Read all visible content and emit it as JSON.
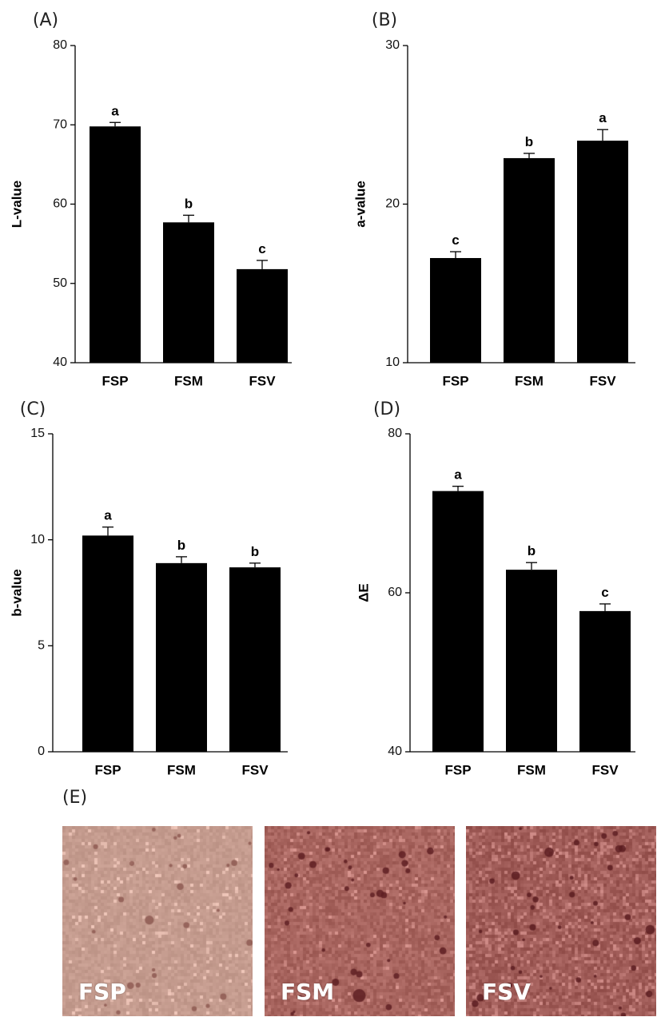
{
  "chart_data": [
    {
      "type": "bar",
      "panel": "(A)",
      "ylabel": "L-value",
      "categories": [
        "FSP",
        "FSM",
        "FSV"
      ],
      "values": [
        69.8,
        57.7,
        51.8
      ],
      "errors": [
        0.5,
        0.9,
        1.1
      ],
      "letters": [
        "a",
        "b",
        "c"
      ],
      "ylim": [
        40,
        80
      ],
      "yticks": [
        40,
        50,
        60,
        70,
        80
      ],
      "color": "#000000"
    },
    {
      "type": "bar",
      "panel": "(B)",
      "ylabel": "a-value",
      "categories": [
        "FSP",
        "FSM",
        "FSV"
      ],
      "values": [
        16.6,
        22.9,
        24.0
      ],
      "errors": [
        0.4,
        0.3,
        0.7
      ],
      "letters": [
        "c",
        "b",
        "a"
      ],
      "ylim": [
        10,
        30
      ],
      "yticks": [
        10,
        20,
        30
      ],
      "color": "#000000"
    },
    {
      "type": "bar",
      "panel": "(C)",
      "ylabel": "b-value",
      "categories": [
        "FSP",
        "FSM",
        "FSV"
      ],
      "values": [
        10.2,
        8.9,
        8.7
      ],
      "errors": [
        0.4,
        0.3,
        0.2
      ],
      "letters": [
        "a",
        "b",
        "b"
      ],
      "ylim": [
        0,
        15
      ],
      "yticks": [
        0,
        5,
        10,
        15
      ],
      "color": "#000000"
    },
    {
      "type": "bar",
      "panel": "(D)",
      "ylabel": "ΔE",
      "categories": [
        "FSP",
        "FSM",
        "FSV"
      ],
      "values": [
        72.8,
        62.9,
        57.7
      ],
      "errors": [
        0.6,
        0.9,
        0.9
      ],
      "letters": [
        "a",
        "b",
        "c"
      ],
      "ylim": [
        40,
        80
      ],
      "yticks": [
        40,
        60,
        80
      ],
      "color": "#000000"
    }
  ],
  "panel_e": {
    "label": "(E)",
    "photos": [
      {
        "caption": "FSP",
        "base_color": "#c49b8e",
        "speck_color": "#8e5a52"
      },
      {
        "caption": "FSM",
        "base_color": "#a8655f",
        "speck_color": "#5e1f22"
      },
      {
        "caption": "FSV",
        "base_color": "#9e5a56",
        "speck_color": "#5a1c20"
      }
    ]
  }
}
